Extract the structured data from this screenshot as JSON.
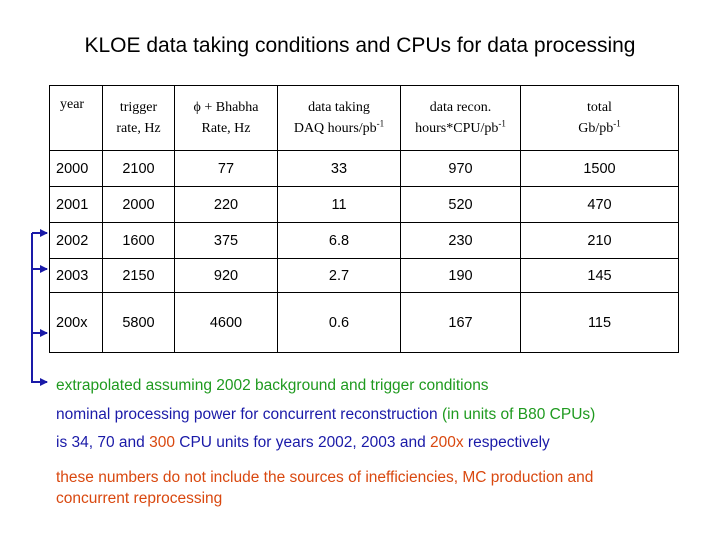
{
  "title": "KLOE data taking conditions and CPUs for data processing",
  "table": {
    "headers": [
      {
        "line1": "year",
        "line2": ""
      },
      {
        "line1": "trigger",
        "line2": "rate, Hz"
      },
      {
        "line1": "ϕ + Bhabha",
        "line2": "Rate, Hz"
      },
      {
        "line1": "data taking",
        "line2": "DAQ hours/pb",
        "sup": "-1"
      },
      {
        "line1": "data recon.",
        "line2": "hours*CPU/pb",
        "sup": "-1"
      },
      {
        "line1": "total",
        "line2": "Gb/pb",
        "sup": "-1"
      }
    ],
    "rows": [
      [
        "2000",
        "2100",
        "77",
        "33",
        "970",
        "1500"
      ],
      [
        "2001",
        "2000",
        "220",
        "11",
        "520",
        "470"
      ],
      [
        "2002",
        "1600",
        "375",
        "6.8",
        "230",
        "210"
      ],
      [
        "2003",
        "2150",
        "920",
        "2.7",
        "190",
        "145"
      ],
      [
        "200x",
        "5800",
        "4600",
        "0.6",
        "167",
        "115"
      ]
    ]
  },
  "notes": {
    "extrapolated": "extrapolated assuming 2002 background and trigger conditions",
    "nominal_a": "nominal processing power for concurrent reconstruction ",
    "nominal_b": "(in units of B80 CPUs)",
    "is_a": "is 34, 70 and ",
    "is_b": "300",
    "is_c": " CPU units for years 2002, 2003 and ",
    "is_d": "200x",
    "is_e": " respectively",
    "caveat_line1": "these numbers do not include the sources of inefficiencies, MC production and",
    "caveat_line2": "concurrent reprocessing"
  },
  "colors": {
    "green": "#1f9a1f",
    "blue": "#1a1aa8",
    "orange": "#d9480f"
  }
}
